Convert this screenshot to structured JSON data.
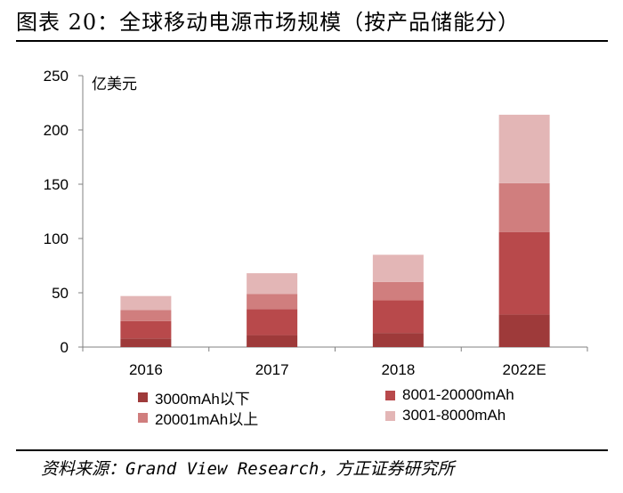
{
  "title": "图表 20：全球移动电源市场规模（按产品储能分）",
  "source": "资料来源：Grand View Research，方正证券研究所",
  "colors": {
    "axis": "#808080",
    "text": "#000000"
  },
  "chart_data": {
    "type": "bar",
    "stacked": true,
    "title": "",
    "ylabel": "亿美元",
    "xlabel": "",
    "categories": [
      "2016",
      "2017",
      "2018",
      "2022E"
    ],
    "ylim": [
      0,
      250
    ],
    "yticks": [
      "0",
      "50",
      "100",
      "150",
      "200",
      "250"
    ],
    "series": [
      {
        "name": "3000mAh以下",
        "color": "#9e3a3a",
        "values": [
          8,
          11,
          13,
          30
        ]
      },
      {
        "name": "8001-20000mAh",
        "color": "#b8494b",
        "values": [
          16,
          24,
          30,
          76
        ]
      },
      {
        "name": "20001mAh以上",
        "color": "#d07e7e",
        "values": [
          10,
          14,
          17,
          45
        ]
      },
      {
        "name": "3001-8000mAh",
        "color": "#e3b6b6",
        "values": [
          13,
          19,
          25,
          63
        ]
      }
    ],
    "legend_order": [
      0,
      1,
      2,
      3
    ]
  }
}
